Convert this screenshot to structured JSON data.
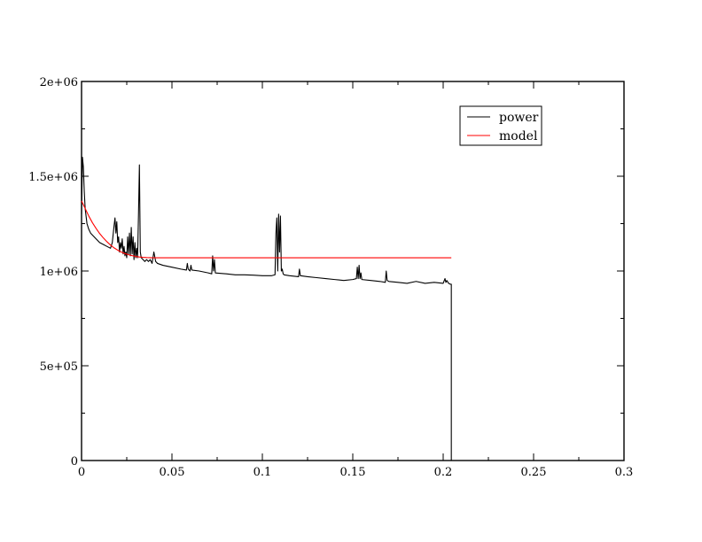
{
  "chart_data": {
    "type": "line",
    "title": "",
    "xlabel": "",
    "ylabel": "",
    "xlim": [
      0,
      0.3
    ],
    "ylim": [
      0,
      2000000
    ],
    "x_ticks": [
      0,
      0.05,
      0.1,
      0.15,
      0.2,
      0.25,
      0.3
    ],
    "x_tick_labels": [
      "0",
      "0.05",
      "0.1",
      "0.15",
      "0.2",
      "0.25",
      "0.3"
    ],
    "y_ticks": [
      0,
      500000,
      1000000,
      1500000,
      2000000
    ],
    "y_tick_labels": [
      "0",
      "5e+05",
      "1e+06",
      "1.5e+06",
      "2e+06"
    ],
    "grid": false,
    "legend_position": "top-right",
    "series": [
      {
        "name": "power",
        "color": "#000000",
        "x": [
          0,
          0.0005,
          0.001,
          0.0015,
          0.002,
          0.003,
          0.004,
          0.005,
          0.006,
          0.008,
          0.01,
          0.012,
          0.014,
          0.016,
          0.017,
          0.018,
          0.0185,
          0.019,
          0.0195,
          0.02,
          0.0205,
          0.021,
          0.0215,
          0.022,
          0.0225,
          0.023,
          0.0235,
          0.024,
          0.0245,
          0.025,
          0.0255,
          0.026,
          0.0265,
          0.027,
          0.0275,
          0.028,
          0.0285,
          0.029,
          0.0295,
          0.03,
          0.0305,
          0.031,
          0.0315,
          0.032,
          0.0325,
          0.033,
          0.034,
          0.035,
          0.036,
          0.037,
          0.038,
          0.039,
          0.04,
          0.041,
          0.042,
          0.045,
          0.05,
          0.055,
          0.058,
          0.0585,
          0.059,
          0.06,
          0.0605,
          0.061,
          0.065,
          0.07,
          0.072,
          0.0725,
          0.073,
          0.0735,
          0.074,
          0.08,
          0.085,
          0.09,
          0.095,
          0.1,
          0.105,
          0.107,
          0.1075,
          0.108,
          0.1085,
          0.109,
          0.1095,
          0.11,
          0.1105,
          0.111,
          0.1115,
          0.112,
          0.115,
          0.12,
          0.1205,
          0.121,
          0.125,
          0.13,
          0.135,
          0.14,
          0.145,
          0.15,
          0.152,
          0.1525,
          0.153,
          0.1535,
          0.154,
          0.1545,
          0.155,
          0.16,
          0.165,
          0.168,
          0.1685,
          0.169,
          0.17,
          0.175,
          0.18,
          0.185,
          0.19,
          0.195,
          0.2,
          0.201,
          0.2015,
          0.202,
          0.203,
          0.204,
          0.2045,
          0.2045
        ],
        "y": [
          1300000,
          1600000,
          1550000,
          1420000,
          1330000,
          1250000,
          1220000,
          1200000,
          1190000,
          1170000,
          1150000,
          1140000,
          1130000,
          1120000,
          1150000,
          1240000,
          1280000,
          1200000,
          1260000,
          1150000,
          1180000,
          1100000,
          1150000,
          1120000,
          1170000,
          1090000,
          1130000,
          1080000,
          1100000,
          1070000,
          1180000,
          1090000,
          1200000,
          1080000,
          1230000,
          1090000,
          1180000,
          1060000,
          1150000,
          1070000,
          1120000,
          1070000,
          1300000,
          1560000,
          1100000,
          1070000,
          1060000,
          1050000,
          1060000,
          1050000,
          1060000,
          1040000,
          1100000,
          1050000,
          1040000,
          1030000,
          1020000,
          1010000,
          1005000,
          1040000,
          1010000,
          1000000,
          1030000,
          1005000,
          1000000,
          990000,
          985000,
          1080000,
          1000000,
          1060000,
          990000,
          985000,
          980000,
          980000,
          978000,
          975000,
          975000,
          980000,
          1200000,
          1280000,
          1000000,
          1300000,
          1100000,
          1290000,
          1000000,
          1010000,
          985000,
          980000,
          975000,
          970000,
          1010000,
          975000,
          970000,
          965000,
          960000,
          955000,
          950000,
          955000,
          960000,
          1020000,
          960000,
          1030000,
          960000,
          990000,
          955000,
          950000,
          945000,
          940000,
          1000000,
          950000,
          945000,
          940000,
          935000,
          945000,
          935000,
          940000,
          935000,
          960000,
          940000,
          950000,
          935000,
          930000,
          930000,
          0
        ]
      },
      {
        "name": "model",
        "color": "#ff0000",
        "x": [
          0,
          0.002,
          0.004,
          0.006,
          0.008,
          0.01,
          0.012,
          0.014,
          0.016,
          0.018,
          0.02,
          0.022,
          0.024,
          0.026,
          0.028,
          0.03,
          0.032,
          0.034,
          0.036,
          0.04,
          0.05,
          0.1,
          0.15,
          0.2,
          0.2045
        ],
        "y": [
          1370000,
          1330000,
          1290000,
          1255000,
          1225000,
          1198000,
          1175000,
          1155000,
          1137000,
          1122000,
          1110000,
          1100000,
          1092000,
          1086000,
          1081000,
          1077000,
          1074000,
          1072000,
          1071000,
          1070000,
          1070000,
          1070000,
          1070000,
          1070000,
          1070000
        ]
      }
    ]
  }
}
